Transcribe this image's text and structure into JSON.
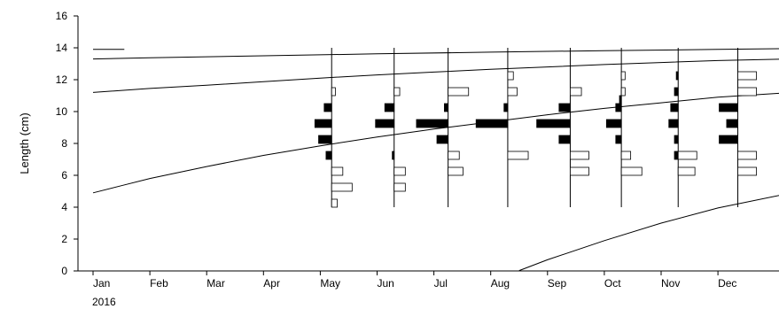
{
  "chart_data": {
    "type": "length-frequency",
    "ylabel": "Length (cm)",
    "xlabel": "",
    "year_label": "2016",
    "ylim": [
      0,
      16
    ],
    "y_ticks": [
      0,
      2,
      4,
      6,
      8,
      10,
      12,
      14,
      16
    ],
    "x_ticks": [
      "Jan",
      "Feb",
      "Mar",
      "Apr",
      "May",
      "Jun",
      "Jul",
      "Aug",
      "Sep",
      "Oct",
      "Nov",
      "Dec"
    ],
    "xlim_months": [
      1,
      13.3
    ],
    "grid": false,
    "legend": "none",
    "bin_width_cm": 1,
    "samples": [
      {
        "month": 5.2,
        "restructured": [
          [
            7,
            7.5,
            0.15
          ],
          [
            8,
            8.5,
            0.35
          ],
          [
            9,
            9.5,
            0.45
          ],
          [
            10,
            10.5,
            0.2
          ]
        ],
        "raw": [
          [
            4,
            4.5,
            0.15
          ],
          [
            5,
            5.5,
            0.55
          ],
          [
            6,
            6.5,
            0.3
          ],
          [
            11,
            11.5,
            0.1
          ]
        ]
      },
      {
        "month": 6.3,
        "restructured": [
          [
            7,
            7.5,
            0.05
          ],
          [
            9,
            9.5,
            0.5
          ],
          [
            10,
            10.5,
            0.25
          ]
        ],
        "raw": [
          [
            5,
            5.5,
            0.3
          ],
          [
            6,
            6.5,
            0.3
          ],
          [
            11,
            11.5,
            0.15
          ]
        ]
      },
      {
        "month": 7.25,
        "restructured": [
          [
            8,
            8.5,
            0.3
          ],
          [
            9,
            9.5,
            0.85
          ],
          [
            10,
            10.5,
            0.1
          ]
        ],
        "raw": [
          [
            6,
            6.5,
            0.4
          ],
          [
            7,
            7.5,
            0.3
          ],
          [
            11,
            11.5,
            0.55
          ]
        ]
      },
      {
        "month": 8.3,
        "restructured": [
          [
            9,
            9.5,
            0.85
          ],
          [
            10,
            10.5,
            0.1
          ]
        ],
        "raw": [
          [
            7,
            7.5,
            0.55
          ],
          [
            11,
            11.5,
            0.25
          ],
          [
            12,
            12.5,
            0.15
          ]
        ]
      },
      {
        "month": 9.4,
        "restructured": [
          [
            8,
            8.5,
            0.3
          ],
          [
            9,
            9.5,
            0.9
          ],
          [
            10,
            10.5,
            0.3
          ]
        ],
        "raw": [
          [
            6,
            6.5,
            0.5
          ],
          [
            7,
            7.5,
            0.5
          ],
          [
            11,
            11.5,
            0.3
          ]
        ]
      },
      {
        "month": 10.3,
        "restructured": [
          [
            8,
            8.5,
            0.15
          ],
          [
            9,
            9.5,
            0.4
          ],
          [
            10,
            10.5,
            0.15
          ],
          [
            10.5,
            11,
            0.05
          ]
        ],
        "raw": [
          [
            6,
            6.5,
            0.55
          ],
          [
            7,
            7.5,
            0.25
          ],
          [
            11,
            11.5,
            0.1
          ],
          [
            12,
            12.5,
            0.1
          ]
        ]
      },
      {
        "month": 11.3,
        "restructured": [
          [
            7,
            7.5,
            0.1
          ],
          [
            8,
            8.5,
            0.1
          ],
          [
            9,
            9.5,
            0.25
          ],
          [
            10,
            10.5,
            0.2
          ],
          [
            11,
            11.5,
            0.1
          ],
          [
            12,
            12.5,
            0.05
          ]
        ],
        "raw": [
          [
            6,
            6.5,
            0.45
          ],
          [
            7,
            7.5,
            0.5
          ]
        ]
      },
      {
        "month": 12.35,
        "restructured": [
          [
            8,
            8.5,
            0.5
          ],
          [
            9,
            9.5,
            0.3
          ],
          [
            10,
            10.5,
            0.5
          ]
        ],
        "raw": [
          [
            6,
            6.5,
            0.5
          ],
          [
            7,
            7.5,
            0.5
          ],
          [
            11,
            11.5,
            0.5
          ],
          [
            12,
            12.5,
            0.5
          ]
        ]
      }
    ],
    "growth_curves": [
      {
        "points": [
          [
            1,
            13.9
          ],
          [
            1.55,
            13.9
          ]
        ]
      },
      {
        "points": [
          [
            1,
            13.3
          ],
          [
            2,
            13.38
          ],
          [
            4,
            13.5
          ],
          [
            6,
            13.62
          ],
          [
            8,
            13.73
          ],
          [
            10,
            13.82
          ],
          [
            12,
            13.9
          ],
          [
            13.3,
            13.95
          ]
        ]
      },
      {
        "points": [
          [
            1,
            11.2
          ],
          [
            2,
            11.45
          ],
          [
            3,
            11.65
          ],
          [
            4,
            11.88
          ],
          [
            5,
            12.1
          ],
          [
            6,
            12.3
          ],
          [
            7,
            12.48
          ],
          [
            8,
            12.65
          ],
          [
            9,
            12.8
          ],
          [
            10,
            12.95
          ],
          [
            11,
            13.08
          ],
          [
            12,
            13.2
          ],
          [
            13.3,
            13.3
          ]
        ]
      },
      {
        "points": [
          [
            1,
            4.9
          ],
          [
            1.5,
            5.35
          ],
          [
            2,
            5.8
          ],
          [
            3,
            6.55
          ],
          [
            4,
            7.25
          ],
          [
            5,
            7.85
          ],
          [
            6,
            8.4
          ],
          [
            7,
            8.9
          ],
          [
            8,
            9.35
          ],
          [
            9,
            9.8
          ],
          [
            10,
            10.2
          ],
          [
            11,
            10.55
          ],
          [
            12,
            10.9
          ],
          [
            13.3,
            11.2
          ]
        ]
      },
      {
        "points": [
          [
            8.5,
            0.02
          ],
          [
            9,
            0.7
          ],
          [
            10,
            1.9
          ],
          [
            11,
            3.0
          ],
          [
            12,
            3.95
          ],
          [
            13.3,
            4.9
          ]
        ]
      }
    ]
  }
}
